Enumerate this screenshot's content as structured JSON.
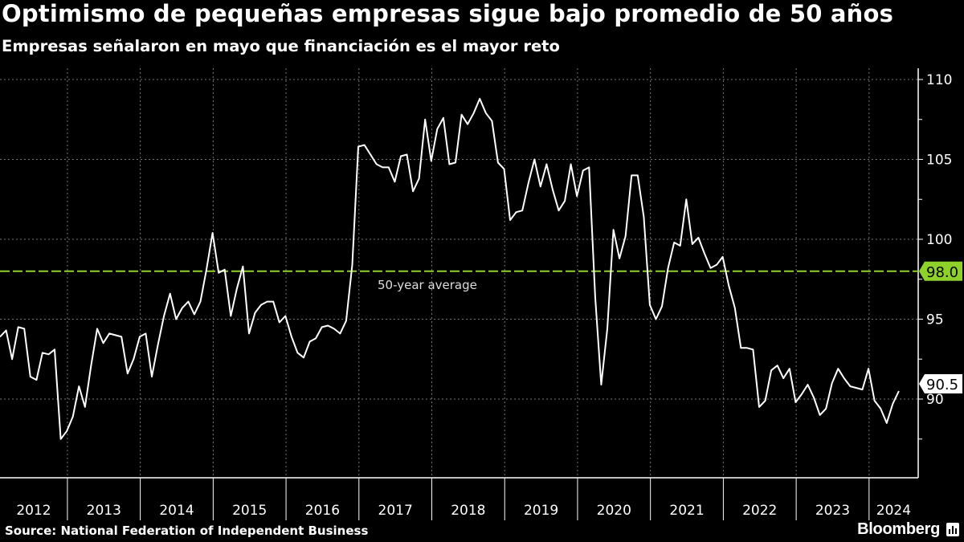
{
  "title": "Optimismo de pequeñas empresas sigue bajo promedio de 50 años",
  "subtitle": "Empresas señalaron en mayo que financiación es el mayor reto",
  "source": "Source: National Federation of Independent Business",
  "brand": "Bloomberg",
  "brand_icon": "bloomberg-chart-icon",
  "chart_data": {
    "type": "line",
    "start": "2012-01",
    "frequency": "monthly",
    "ylim": [
      85,
      110
    ],
    "y_ticks": [
      90,
      95,
      100,
      105,
      110
    ],
    "y_tick_labels": [
      "90",
      "95",
      "100",
      "105",
      "110"
    ],
    "x_tick_labels": [
      "2012",
      "2013",
      "2014",
      "2015",
      "2016",
      "2017",
      "2018",
      "2019",
      "2020",
      "2021",
      "2022",
      "2023",
      "2024"
    ],
    "y_axis_position": "right",
    "grid": true,
    "colors": {
      "line": "#ffffff",
      "average": "#8fd12b",
      "background": "#000000"
    },
    "average": {
      "value": 98.0,
      "label": "50-year average",
      "badge": "98.0"
    },
    "last_value_badge": "90.5",
    "values": [
      93.9,
      94.3,
      92.5,
      94.5,
      94.4,
      91.4,
      91.2,
      92.9,
      92.8,
      93.1,
      87.5,
      88.0,
      88.9,
      90.8,
      89.5,
      92.1,
      94.4,
      93.5,
      94.1,
      94.0,
      93.9,
      91.6,
      92.5,
      93.9,
      94.1,
      91.4,
      93.4,
      95.2,
      96.6,
      95.0,
      95.7,
      96.1,
      95.3,
      96.1,
      98.1,
      100.4,
      97.9,
      98.1,
      95.2,
      96.9,
      98.3,
      94.1,
      95.4,
      95.9,
      96.1,
      96.1,
      94.8,
      95.2,
      93.9,
      92.9,
      92.6,
      93.6,
      93.8,
      94.5,
      94.6,
      94.4,
      94.1,
      94.9,
      98.4,
      105.8,
      105.9,
      105.3,
      104.7,
      104.5,
      104.5,
      103.6,
      105.2,
      105.3,
      103.0,
      103.8,
      107.5,
      104.9,
      106.9,
      107.6,
      104.7,
      104.8,
      107.8,
      107.2,
      107.9,
      108.8,
      107.9,
      107.4,
      104.8,
      104.4,
      101.2,
      101.7,
      101.8,
      103.5,
      105.0,
      103.3,
      104.7,
      103.1,
      101.8,
      102.4,
      104.7,
      102.7,
      104.3,
      104.5,
      96.4,
      90.9,
      94.4,
      100.6,
      98.8,
      100.2,
      104.0,
      104.0,
      101.4,
      95.9,
      95.0,
      95.8,
      98.2,
      99.8,
      99.6,
      102.5,
      99.7,
      100.1,
      99.1,
      98.2,
      98.4,
      98.9,
      97.1,
      95.7,
      93.2,
      93.2,
      93.1,
      89.5,
      89.9,
      91.8,
      92.1,
      91.3,
      91.9,
      89.8,
      90.3,
      90.9,
      90.1,
      89.0,
      89.4,
      91.0,
      91.9,
      91.3,
      90.8,
      90.7,
      90.6,
      91.9,
      89.9,
      89.4,
      88.5,
      89.7,
      90.5
    ]
  }
}
